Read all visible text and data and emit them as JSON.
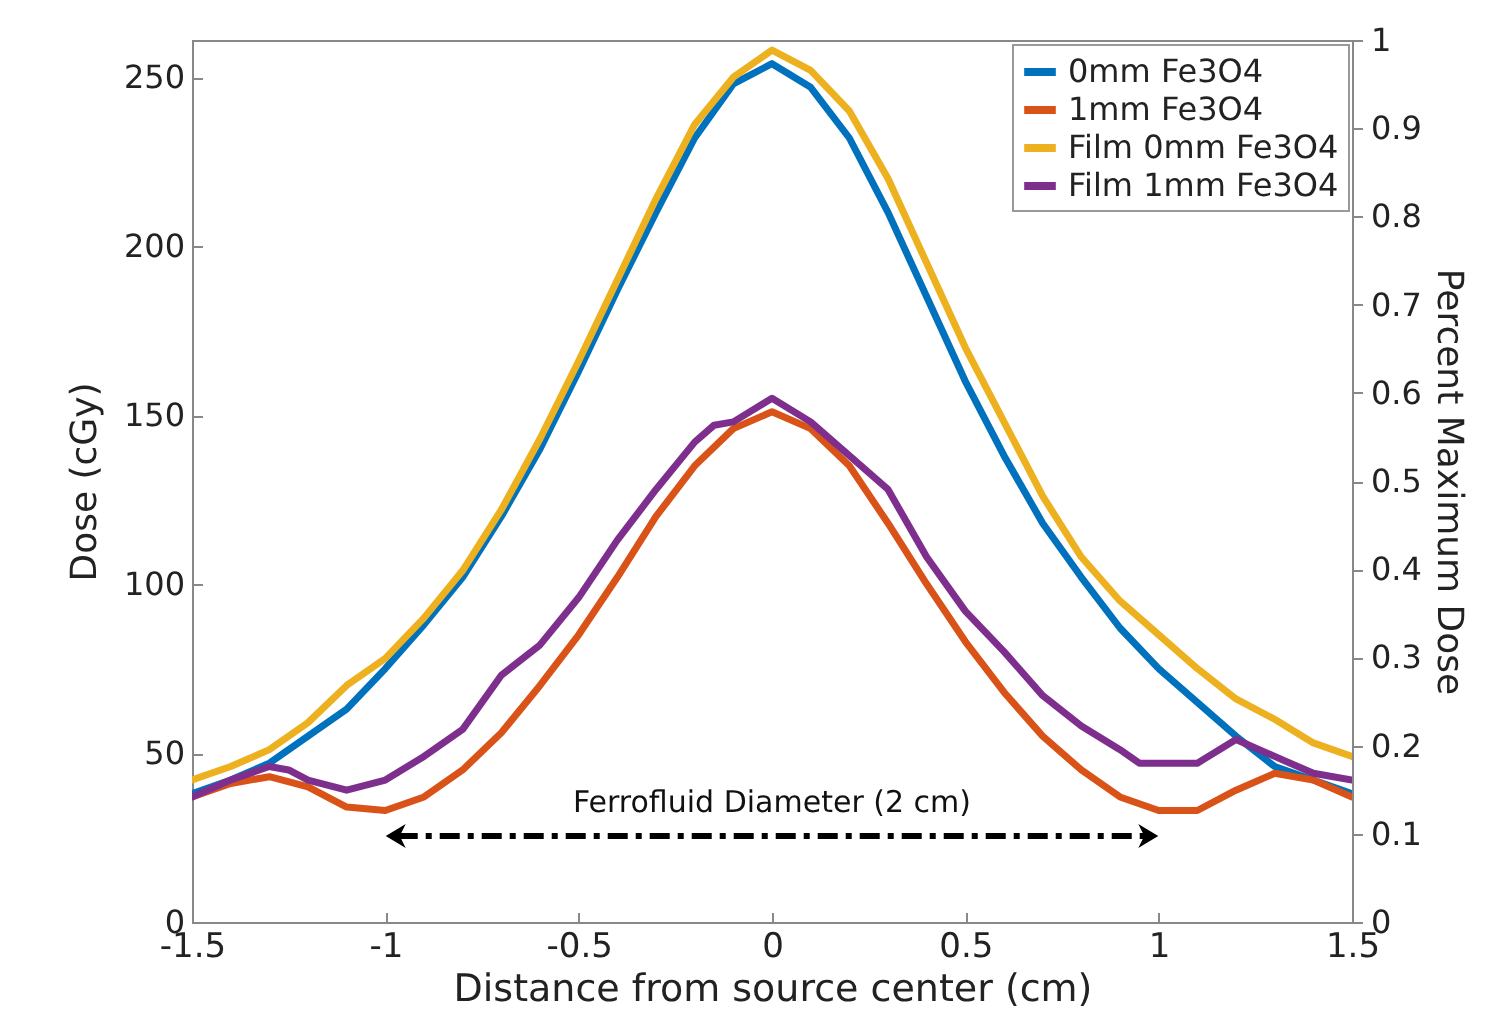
{
  "chart_data": {
    "type": "line",
    "xlabel": "Distance from source center (cm)",
    "ylabel": "Dose (cGy)",
    "y2label": "Percent Maximum Dose",
    "xlim": [
      -1.5,
      1.5
    ],
    "xticks": [
      -1.5,
      -1,
      -0.5,
      0,
      0.5,
      1,
      1.5
    ],
    "ylim": [
      0,
      261
    ],
    "yticks": [
      0,
      50,
      100,
      150,
      200,
      250
    ],
    "y2lim": [
      0,
      1
    ],
    "y2ticks": [
      0,
      0.1,
      0.2,
      0.3,
      0.4,
      0.5,
      0.6,
      0.7,
      0.8,
      0.9,
      1
    ],
    "grid": false,
    "legend": "top right",
    "line_style": "solid",
    "marker": "none",
    "annotations": [
      "Ferrofluid Diameter (2 cm)"
    ],
    "series": [
      {
        "name": "0mm Fe3O4",
        "color": "#0072bd",
        "x": [
          -1.5,
          -1.4,
          -1.3,
          -1.2,
          -1.1,
          -1.0,
          -0.9,
          -0.8,
          -0.7,
          -0.6,
          -0.5,
          -0.4,
          -0.3,
          -0.2,
          -0.1,
          0,
          0.1,
          0.2,
          0.3,
          0.4,
          0.5,
          0.6,
          0.7,
          0.8,
          0.9,
          1.0,
          1.1,
          1.2,
          1.3,
          1.4,
          1.5
        ],
        "values": [
          38,
          42,
          47,
          55,
          63,
          75,
          88,
          102,
          120,
          140,
          163,
          187,
          210,
          232,
          248,
          254,
          247,
          232,
          210,
          185,
          160,
          138,
          118,
          102,
          87,
          75,
          65,
          55,
          46,
          42,
          38
        ]
      },
      {
        "name": "1mm Fe3O4",
        "color": "#d95319",
        "x": [
          -1.5,
          -1.4,
          -1.3,
          -1.2,
          -1.1,
          -1.0,
          -0.9,
          -0.8,
          -0.7,
          -0.6,
          -0.5,
          -0.4,
          -0.3,
          -0.2,
          -0.1,
          0,
          0.1,
          0.2,
          0.3,
          0.4,
          0.5,
          0.6,
          0.7,
          0.8,
          0.9,
          1.0,
          1.1,
          1.2,
          1.3,
          1.4,
          1.5
        ],
        "values": [
          37,
          41,
          43,
          40,
          34,
          33,
          37,
          45,
          56,
          70,
          85,
          102,
          120,
          135,
          146,
          151,
          146,
          135,
          118,
          100,
          83,
          68,
          55,
          45,
          37,
          33,
          33,
          39,
          44,
          42,
          37
        ]
      },
      {
        "name": "Film 0mm Fe3O4",
        "color": "#edb120",
        "x": [
          -1.5,
          -1.4,
          -1.3,
          -1.25,
          -1.2,
          -1.1,
          -1.0,
          -0.9,
          -0.8,
          -0.7,
          -0.6,
          -0.5,
          -0.4,
          -0.3,
          -0.2,
          -0.1,
          0,
          0.1,
          0.2,
          0.3,
          0.4,
          0.5,
          0.6,
          0.7,
          0.8,
          0.9,
          1.0,
          1.1,
          1.2,
          1.3,
          1.4,
          1.5
        ],
        "values": [
          42,
          46,
          51,
          55,
          59,
          70,
          78,
          90,
          104,
          122,
          143,
          166,
          190,
          214,
          236,
          250,
          258,
          252,
          240,
          220,
          195,
          170,
          148,
          126,
          108,
          95,
          85,
          75,
          66,
          60,
          53,
          49
        ]
      },
      {
        "name": "Film 1mm Fe3O4",
        "color": "#7e2f8e",
        "x": [
          -1.5,
          -1.4,
          -1.3,
          -1.25,
          -1.2,
          -1.1,
          -1.0,
          -0.9,
          -0.8,
          -0.7,
          -0.6,
          -0.5,
          -0.4,
          -0.3,
          -0.2,
          -0.15,
          -0.1,
          0,
          0.1,
          0.2,
          0.3,
          0.4,
          0.5,
          0.6,
          0.7,
          0.8,
          0.9,
          0.95,
          1.0,
          1.1,
          1.2,
          1.3,
          1.4,
          1.5
        ],
        "values": [
          37,
          42,
          46,
          45,
          42,
          39,
          42,
          49,
          57,
          73,
          82,
          96,
          113,
          128,
          142,
          147,
          148,
          155,
          148,
          138,
          128,
          108,
          92,
          80,
          67,
          58,
          51,
          47,
          47,
          47,
          54,
          49,
          44,
          42
        ]
      }
    ]
  }
}
